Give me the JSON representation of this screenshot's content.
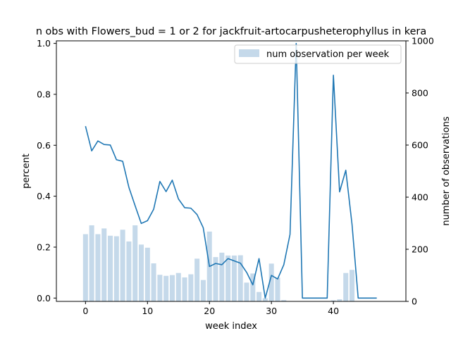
{
  "chart_data": {
    "type": "bar+line",
    "title": "n obs with Flowers_bud = 1 or 2 for jackfruit-artocarpusheterophyllus in kera",
    "xlabel": "week index",
    "ylabel_left": "percent",
    "ylabel_right": "number of observations",
    "xlim": [
      -4.7,
      51.7
    ],
    "ylim_left": [
      -0.013,
      1.01
    ],
    "ylim_right": [
      0,
      1000
    ],
    "x_ticks": [
      0,
      10,
      20,
      30,
      40
    ],
    "y_ticks_left": [
      0.0,
      0.2,
      0.4,
      0.6,
      0.8,
      1.0
    ],
    "y_ticks_left_labels": [
      "0.0",
      "0.2",
      "0.4",
      "0.6",
      "0.8",
      "1.0"
    ],
    "y_ticks_right": [
      0,
      200,
      400,
      600,
      800,
      1000
    ],
    "legend": {
      "label": "num observation per week",
      "position": "top-right"
    },
    "colors": {
      "line": "#1f77b4",
      "bars": "#c5d9ea"
    },
    "bars": {
      "name": "num observation per week",
      "x": [
        0,
        1,
        2,
        3,
        4,
        5,
        6,
        7,
        8,
        9,
        10,
        11,
        12,
        13,
        14,
        15,
        16,
        17,
        18,
        19,
        20,
        21,
        22,
        23,
        24,
        25,
        26,
        27,
        28,
        29,
        30,
        31,
        32,
        33,
        34,
        35,
        36,
        37,
        38,
        39,
        40,
        41,
        42,
        43,
        44,
        45,
        46,
        47
      ],
      "values": [
        258,
        292,
        258,
        280,
        252,
        250,
        275,
        230,
        292,
        218,
        206,
        146,
        102,
        98,
        101,
        109,
        92,
        104,
        164,
        82,
        268,
        170,
        187,
        176,
        176,
        177,
        72,
        107,
        36,
        12,
        145,
        91,
        5,
        0,
        0,
        0,
        0,
        0,
        0,
        0,
        4,
        8,
        109,
        121,
        0,
        0,
        0,
        0
      ]
    },
    "line": {
      "x": [
        0,
        1,
        2,
        3,
        4,
        5,
        6,
        7,
        8,
        9,
        10,
        11,
        12,
        13,
        14,
        15,
        16,
        17,
        18,
        19,
        20,
        21,
        22,
        23,
        24,
        25,
        26,
        27,
        28,
        29,
        30,
        31,
        32,
        33,
        34,
        35,
        36,
        37,
        38,
        39,
        40,
        41,
        42,
        43,
        44,
        45,
        46,
        47
      ],
      "values": [
        0.675,
        0.578,
        0.617,
        0.603,
        0.601,
        0.543,
        0.537,
        0.435,
        0.363,
        0.293,
        0.304,
        0.349,
        0.458,
        0.418,
        0.463,
        0.389,
        0.355,
        0.353,
        0.328,
        0.276,
        0.124,
        0.136,
        0.131,
        0.155,
        0.146,
        0.137,
        0.101,
        0.052,
        0.155,
        0.0,
        0.089,
        0.075,
        0.131,
        0.25,
        1.0,
        0.0,
        0.0,
        0.0,
        0.0,
        0.0,
        0.875,
        0.417,
        0.502,
        0.291,
        0.0,
        0.0,
        0.0,
        0.0
      ]
    }
  }
}
